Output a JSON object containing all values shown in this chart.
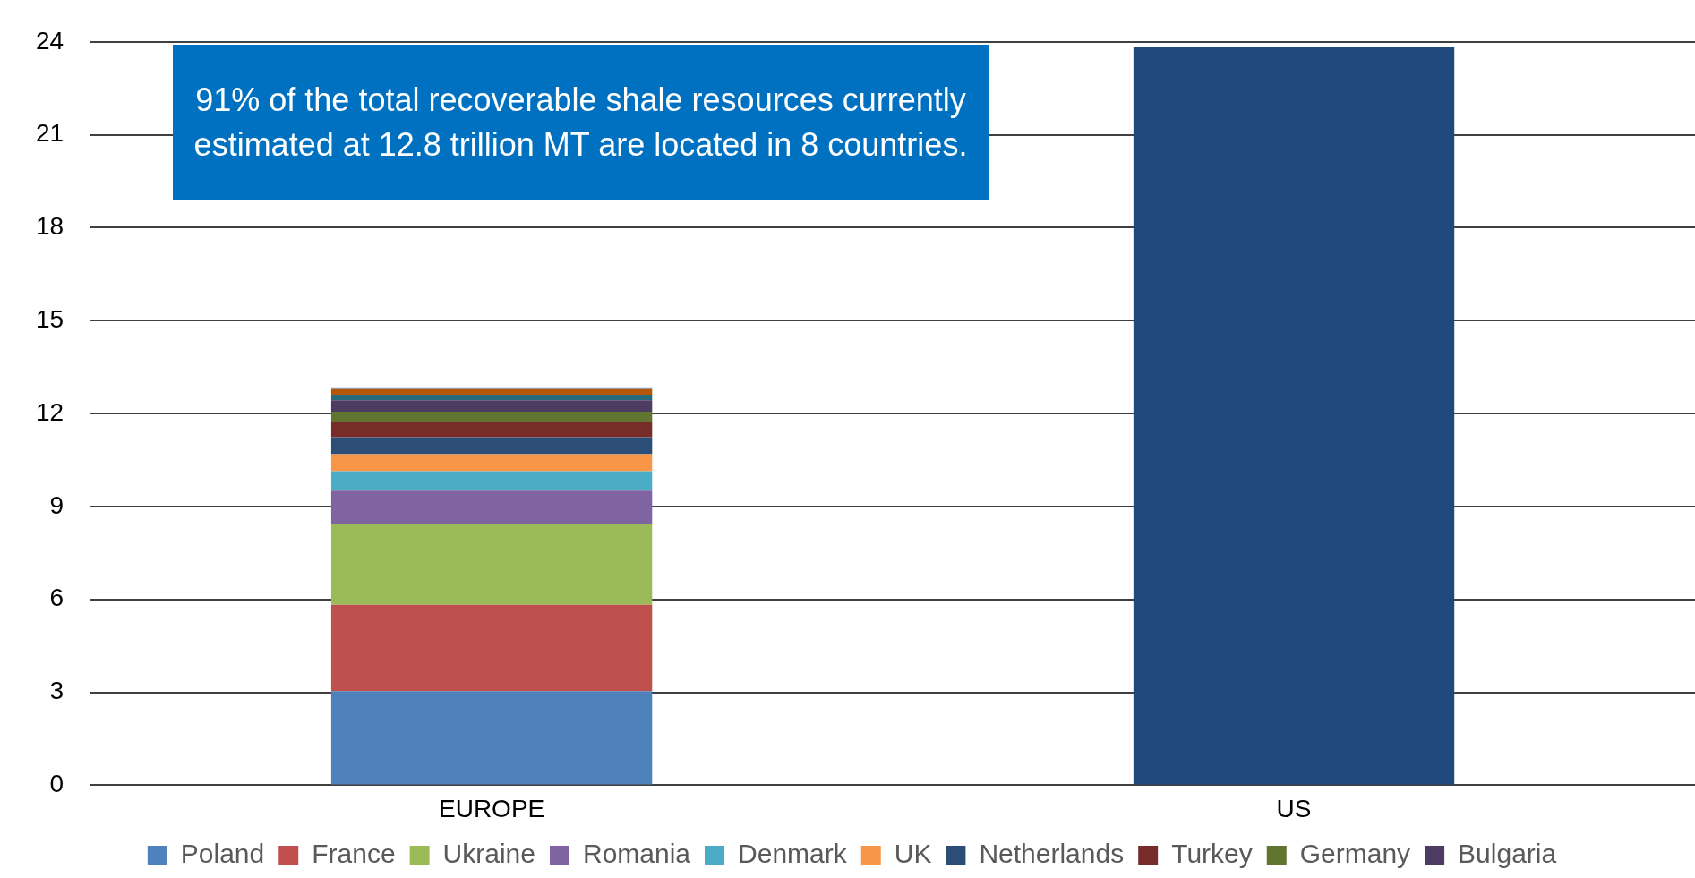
{
  "chart_data": {
    "type": "bar",
    "stacked": true,
    "categories": [
      "EUROPE",
      "US"
    ],
    "series": [
      {
        "name": "Poland",
        "color": "#4f81bd",
        "values": [
          3.04,
          null
        ]
      },
      {
        "name": "France",
        "color": "#c0504d",
        "values": [
          2.79,
          null
        ]
      },
      {
        "name": "Ukraine",
        "color": "#9bbb59",
        "values": [
          2.61,
          null
        ]
      },
      {
        "name": "Romania",
        "color": "#8064a2",
        "values": [
          1.07,
          null
        ]
      },
      {
        "name": "Denmark",
        "color": "#4bacc6",
        "values": [
          0.63,
          null
        ]
      },
      {
        "name": "UK",
        "color": "#f79646",
        "values": [
          0.55,
          null
        ]
      },
      {
        "name": "Netherlands",
        "color": "#2c4d75",
        "values": [
          0.55,
          null
        ]
      },
      {
        "name": "Turkey",
        "color": "#772c2a",
        "values": [
          0.49,
          null
        ]
      },
      {
        "name": "Germany",
        "color": "#5f7530",
        "values": [
          0.33,
          null
        ]
      },
      {
        "name": "Bulgaria",
        "color": "#4d3b62",
        "values": [
          0.37,
          null
        ]
      },
      {
        "color": "#276a7c",
        "values": [
          0.18,
          null
        ]
      },
      {
        "color": "#b65708",
        "values": [
          0.18,
          null
        ]
      },
      {
        "color": "#729aca",
        "values": [
          0.06,
          null
        ]
      },
      {
        "color": "#1f497d",
        "values": [
          null,
          23.84
        ]
      }
    ],
    "ylim": [
      0,
      24
    ],
    "yticks": [
      0,
      3,
      6,
      9,
      12,
      15,
      18,
      21,
      24
    ],
    "grid": "y",
    "legend": "bottom",
    "annotations": [
      "91% of the total recoverable shale resources currently estimated at 12.8 trillion MT are located in 8 countries."
    ]
  }
}
